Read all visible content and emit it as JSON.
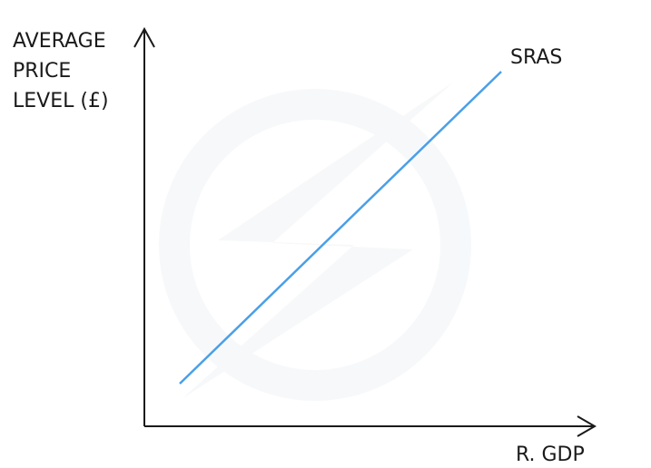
{
  "diagram": {
    "y_axis_label": [
      "AVERAGE",
      "PRICE",
      "LEVEL (£)"
    ],
    "x_axis_label": "R. GDP",
    "curve_label": "SRAS",
    "curve_color": "#4a9fe8",
    "axis_color": "#1a1a1a"
  }
}
